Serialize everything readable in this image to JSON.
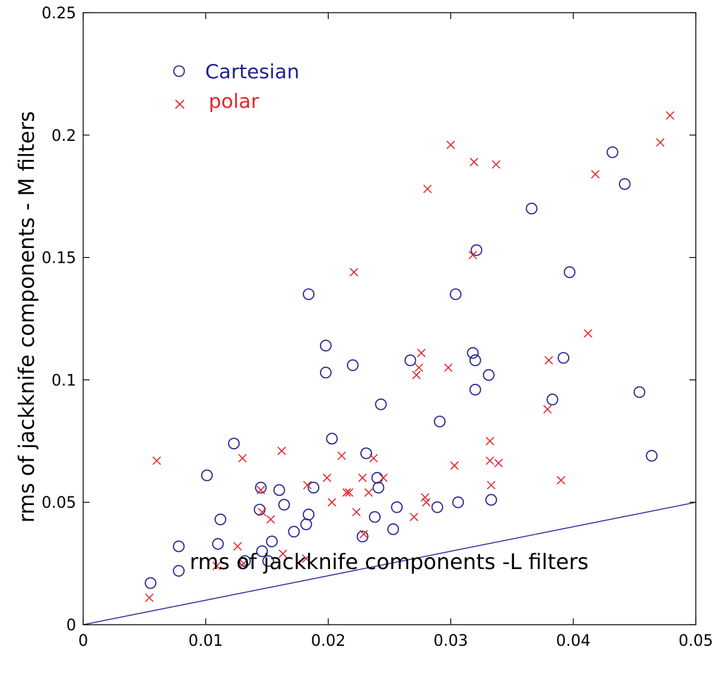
{
  "chart_data": {
    "type": "scatter",
    "title": "",
    "xlabel": "rms of jackknife components -L filters",
    "ylabel": "rms of jackknife components - M filters",
    "xlim": [
      0,
      0.05
    ],
    "ylim": [
      0,
      0.25
    ],
    "xticks": [
      "0",
      "0.01",
      "0.02",
      "0.03",
      "0.04",
      "0.05"
    ],
    "xtick_values": [
      0,
      0.01,
      0.02,
      0.03,
      0.04,
      0.05
    ],
    "yticks": [
      "0",
      "0.05",
      "0.1",
      "0.15",
      "0.2",
      "0.25"
    ],
    "ytick_values": [
      0,
      0.05,
      0.1,
      0.15,
      0.2,
      0.25
    ],
    "grid": false,
    "legend": {
      "position": "top-left"
    },
    "reference_line": {
      "x": [
        0,
        0.05
      ],
      "y": [
        0,
        0.05
      ],
      "color": "#1f1f8f"
    },
    "series": [
      {
        "name": "Cartesian",
        "marker": "circle",
        "color": "#1f1f8f",
        "points": [
          [
            0.0055,
            0.017
          ],
          [
            0.0078,
            0.022
          ],
          [
            0.0078,
            0.032
          ],
          [
            0.0101,
            0.061
          ],
          [
            0.011,
            0.033
          ],
          [
            0.0112,
            0.043
          ],
          [
            0.0123,
            0.074
          ],
          [
            0.0132,
            0.026
          ],
          [
            0.0144,
            0.047
          ],
          [
            0.0145,
            0.056
          ],
          [
            0.0146,
            0.03
          ],
          [
            0.0151,
            0.026
          ],
          [
            0.0154,
            0.034
          ],
          [
            0.016,
            0.055
          ],
          [
            0.0164,
            0.049
          ],
          [
            0.0172,
            0.038
          ],
          [
            0.0182,
            0.041
          ],
          [
            0.0184,
            0.045
          ],
          [
            0.0184,
            0.135
          ],
          [
            0.0188,
            0.056
          ],
          [
            0.0198,
            0.114
          ],
          [
            0.0198,
            0.103
          ],
          [
            0.0203,
            0.076
          ],
          [
            0.022,
            0.106
          ],
          [
            0.0228,
            0.036
          ],
          [
            0.0231,
            0.07
          ],
          [
            0.0238,
            0.044
          ],
          [
            0.024,
            0.06
          ],
          [
            0.0241,
            0.056
          ],
          [
            0.0243,
            0.09
          ],
          [
            0.0253,
            0.039
          ],
          [
            0.0256,
            0.048
          ],
          [
            0.0267,
            0.108
          ],
          [
            0.0289,
            0.048
          ],
          [
            0.0291,
            0.083
          ],
          [
            0.0304,
            0.135
          ],
          [
            0.0306,
            0.05
          ],
          [
            0.0318,
            0.111
          ],
          [
            0.032,
            0.108
          ],
          [
            0.032,
            0.096
          ],
          [
            0.0321,
            0.153
          ],
          [
            0.0331,
            0.102
          ],
          [
            0.0333,
            0.051
          ],
          [
            0.0366,
            0.17
          ],
          [
            0.0383,
            0.092
          ],
          [
            0.0392,
            0.109
          ],
          [
            0.0397,
            0.144
          ],
          [
            0.0432,
            0.193
          ],
          [
            0.0442,
            0.18
          ],
          [
            0.0454,
            0.095
          ],
          [
            0.0464,
            0.069
          ]
        ]
      },
      {
        "name": "polar",
        "marker": "x",
        "color": "#e8232a",
        "points": [
          [
            0.0054,
            0.011
          ],
          [
            0.006,
            0.067
          ],
          [
            0.0109,
            0.024
          ],
          [
            0.0126,
            0.032
          ],
          [
            0.013,
            0.068
          ],
          [
            0.0131,
            0.025
          ],
          [
            0.0145,
            0.055
          ],
          [
            0.0146,
            0.046
          ],
          [
            0.0153,
            0.043
          ],
          [
            0.0162,
            0.071
          ],
          [
            0.0163,
            0.029
          ],
          [
            0.0182,
            0.027
          ],
          [
            0.0183,
            0.057
          ],
          [
            0.0199,
            0.06
          ],
          [
            0.0203,
            0.05
          ],
          [
            0.0211,
            0.069
          ],
          [
            0.0215,
            0.054
          ],
          [
            0.0217,
            0.054
          ],
          [
            0.0221,
            0.144
          ],
          [
            0.0223,
            0.046
          ],
          [
            0.0228,
            0.06
          ],
          [
            0.0229,
            0.037
          ],
          [
            0.0233,
            0.054
          ],
          [
            0.0237,
            0.068
          ],
          [
            0.0245,
            0.06
          ],
          [
            0.027,
            0.044
          ],
          [
            0.0272,
            0.102
          ],
          [
            0.0274,
            0.105
          ],
          [
            0.0276,
            0.111
          ],
          [
            0.0279,
            0.052
          ],
          [
            0.028,
            0.05
          ],
          [
            0.0281,
            0.178
          ],
          [
            0.0298,
            0.105
          ],
          [
            0.03,
            0.196
          ],
          [
            0.0303,
            0.065
          ],
          [
            0.0318,
            0.151
          ],
          [
            0.0319,
            0.189
          ],
          [
            0.0332,
            0.075
          ],
          [
            0.0332,
            0.067
          ],
          [
            0.0333,
            0.057
          ],
          [
            0.0337,
            0.188
          ],
          [
            0.0339,
            0.066
          ],
          [
            0.0379,
            0.088
          ],
          [
            0.038,
            0.108
          ],
          [
            0.039,
            0.059
          ],
          [
            0.0412,
            0.119
          ],
          [
            0.0418,
            0.184
          ],
          [
            0.0471,
            0.197
          ],
          [
            0.0479,
            0.208
          ]
        ]
      }
    ]
  }
}
